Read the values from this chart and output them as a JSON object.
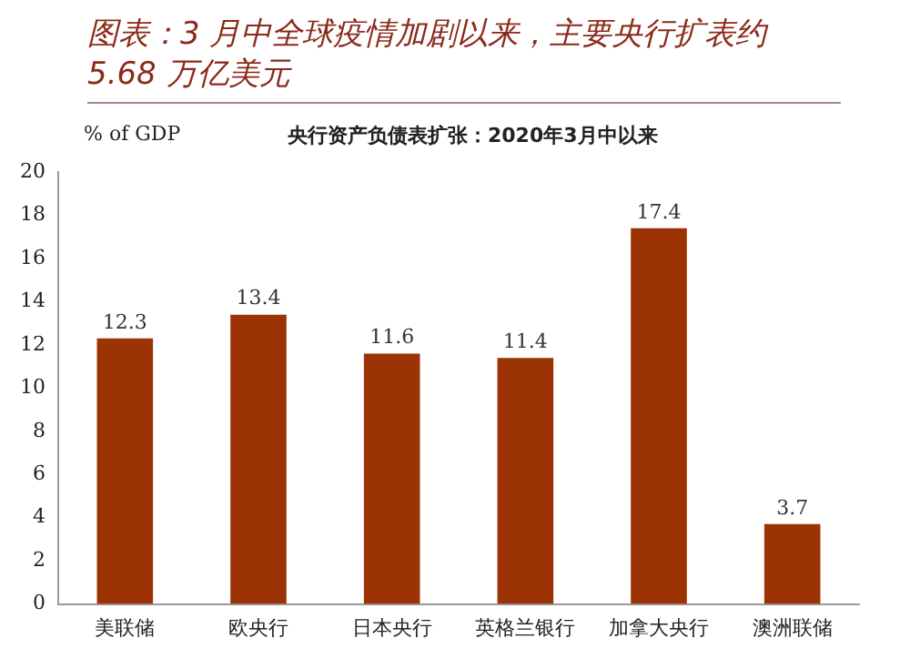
{
  "chart_data": {
    "type": "bar",
    "title": "图表：3 月中全球疫情加剧以来，主要央行扩表约 5.68 万亿美元",
    "subtitle": "央行资产负债表扩张：2020年3月中以来",
    "ylabel": "% of GDP",
    "categories": [
      "美联储",
      "欧央行",
      "日本央行",
      "英格兰银行",
      "加拿大央行",
      "澳洲联储"
    ],
    "values": [
      12.3,
      13.4,
      11.6,
      11.4,
      17.4,
      3.7
    ],
    "color": "#9c3305",
    "ylim": [
      0,
      20
    ],
    "yticks": [
      0,
      2,
      4,
      6,
      8,
      10,
      12,
      14,
      16,
      18,
      20
    ],
    "grid": false,
    "legend": false,
    "data_labels": true
  }
}
